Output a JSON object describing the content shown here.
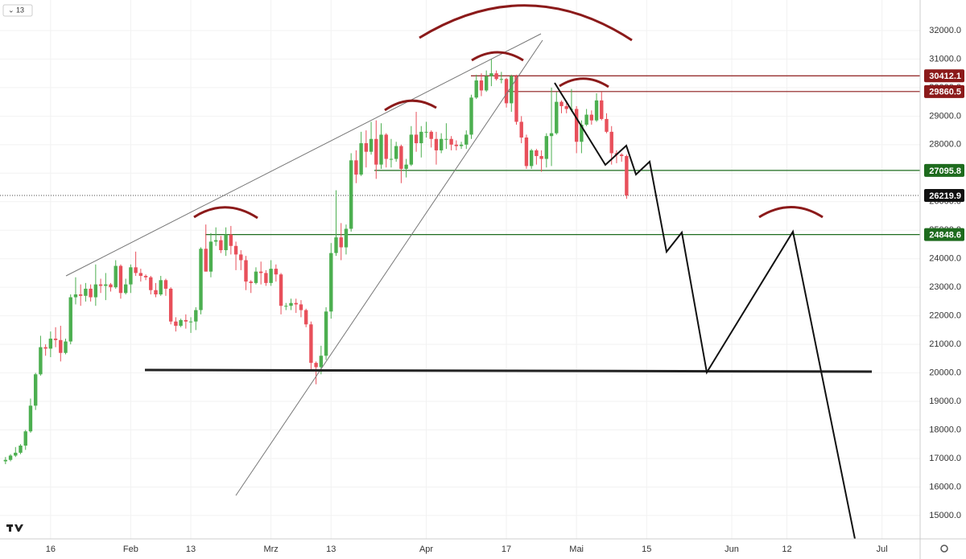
{
  "toolbar_label": "13",
  "chart_data": {
    "type": "candlestick",
    "up_color": "#4caf50",
    "down_color": "#e8505b",
    "xlim": [
      5.9,
      189.6
    ],
    "xticks": [
      {
        "value": 16,
        "label": "16"
      },
      {
        "value": 32,
        "label": "Feb"
      },
      {
        "value": 44,
        "label": "13"
      },
      {
        "value": 60,
        "label": "Mrz"
      },
      {
        "value": 72,
        "label": "13"
      },
      {
        "value": 91,
        "label": "Apr"
      },
      {
        "value": 107,
        "label": "17"
      },
      {
        "value": 121,
        "label": "Mai"
      },
      {
        "value": 135,
        "label": "15"
      },
      {
        "value": 152,
        "label": "Jun"
      },
      {
        "value": 163,
        "label": "12"
      },
      {
        "value": 182,
        "label": "Jul"
      }
    ],
    "ylim": [
      14180,
      33070
    ],
    "yticks": [
      {
        "value": 15000,
        "label": "15000.0"
      },
      {
        "value": 16000,
        "label": "16000.0"
      },
      {
        "value": 17000,
        "label": "17000.0"
      },
      {
        "value": 18000,
        "label": "18000.0"
      },
      {
        "value": 19000,
        "label": "19000.0"
      },
      {
        "value": 20000,
        "label": "20000.0"
      },
      {
        "value": 21000,
        "label": "21000.0"
      },
      {
        "value": 22000,
        "label": "22000.0"
      },
      {
        "value": 23000,
        "label": "23000.0"
      },
      {
        "value": 24000,
        "label": "24000.0"
      },
      {
        "value": 25000,
        "label": "25000.0"
      },
      {
        "value": 26000,
        "label": "26000.0"
      },
      {
        "value": 27000,
        "label": "27000.0"
      },
      {
        "value": 28000,
        "label": "28000.0"
      },
      {
        "value": 29000,
        "label": "29000.0"
      },
      {
        "value": 30000,
        "label": "30000.0"
      },
      {
        "value": 31000,
        "label": "31000.0"
      },
      {
        "value": 32000,
        "label": "32000.0"
      }
    ],
    "price_lines": [
      {
        "value": 30412.1,
        "color": "#8b1a1a"
      },
      {
        "value": 29860.5,
        "color": "#8b1a1a"
      },
      {
        "value": 27095.8,
        "color": "#1e6b1e"
      },
      {
        "value": 24848.6,
        "color": "#1e6b1e"
      },
      {
        "value": 26219.9,
        "color": "#111111"
      }
    ],
    "x": [
      7,
      8,
      9,
      10,
      11,
      12,
      13,
      14,
      15,
      16,
      17,
      18,
      19,
      20,
      21,
      22,
      23,
      24,
      25,
      26,
      27,
      28,
      29,
      30,
      31,
      32,
      33,
      34,
      35,
      36,
      37,
      38,
      39,
      40,
      41,
      42,
      43,
      44,
      45,
      46,
      47,
      48,
      49,
      50,
      51,
      52,
      53,
      54,
      55,
      56,
      57,
      58,
      59,
      60,
      61,
      62,
      63,
      64,
      65,
      66,
      67,
      68,
      69,
      70,
      71,
      72,
      73,
      74,
      75,
      76,
      77,
      78,
      79,
      80,
      81,
      82,
      83,
      84,
      85,
      86,
      87,
      88,
      89,
      90,
      91,
      92,
      93,
      94,
      95,
      96,
      97,
      98,
      99,
      100,
      101,
      102,
      103,
      104,
      105,
      106,
      107,
      108,
      109,
      110,
      111,
      112,
      113,
      114,
      115,
      116,
      117,
      118,
      119,
      120,
      121,
      122,
      123,
      124,
      125,
      126,
      127,
      128,
      129,
      130,
      131
    ],
    "ohlc": [
      [
        16900,
        17050,
        16800,
        16950
      ],
      [
        16950,
        17150,
        16900,
        17100
      ],
      [
        17100,
        17400,
        17050,
        17200
      ],
      [
        17200,
        17500,
        17150,
        17450
      ],
      [
        17450,
        18000,
        17300,
        17950
      ],
      [
        17950,
        19100,
        17900,
        18850
      ],
      [
        18850,
        20000,
        18700,
        19950
      ],
      [
        19950,
        21300,
        19900,
        20900
      ],
      [
        20900,
        21000,
        20600,
        20850
      ],
      [
        20850,
        21450,
        20550,
        21200
      ],
      [
        21200,
        21600,
        20900,
        21150
      ],
      [
        21150,
        21650,
        20400,
        20700
      ],
      [
        20700,
        21200,
        20650,
        21100
      ],
      [
        21100,
        22750,
        21000,
        22650
      ],
      [
        22650,
        23350,
        22400,
        22750
      ],
      [
        22750,
        23100,
        22350,
        22700
      ],
      [
        22700,
        23150,
        22500,
        22950
      ],
      [
        22950,
        23100,
        22500,
        22650
      ],
      [
        22650,
        23800,
        22350,
        23100
      ],
      [
        23100,
        23300,
        22800,
        23050
      ],
      [
        23050,
        23500,
        22550,
        23100
      ],
      [
        23100,
        23150,
        22850,
        23000
      ],
      [
        23000,
        23950,
        22950,
        23750
      ],
      [
        23750,
        23800,
        22600,
        22800
      ],
      [
        22800,
        23300,
        22750,
        23100
      ],
      [
        23100,
        23800,
        22800,
        23700
      ],
      [
        23700,
        24250,
        23400,
        23500
      ],
      [
        23500,
        23650,
        23200,
        23400
      ],
      [
        23400,
        23450,
        23250,
        23350
      ],
      [
        23350,
        23400,
        22750,
        22900
      ],
      [
        22900,
        23150,
        22650,
        22750
      ],
      [
        22750,
        23400,
        22700,
        23250
      ],
      [
        23250,
        23300,
        22700,
        22950
      ],
      [
        22950,
        23000,
        21700,
        21800
      ],
      [
        21800,
        21950,
        21450,
        21650
      ],
      [
        21650,
        21900,
        21600,
        21850
      ],
      [
        21850,
        22050,
        21550,
        21800
      ],
      [
        21800,
        21950,
        21400,
        21800
      ],
      [
        21800,
        22300,
        21500,
        22200
      ],
      [
        22200,
        24400,
        22050,
        24350
      ],
      [
        24350,
        25200,
        23550,
        23550
      ],
      [
        23550,
        24900,
        23350,
        24600
      ],
      [
        24600,
        25100,
        24450,
        24650
      ],
      [
        24650,
        24800,
        24200,
        24300
      ],
      [
        24300,
        25100,
        24100,
        24850
      ],
      [
        24850,
        25150,
        24150,
        24450
      ],
      [
        24450,
        24600,
        23600,
        24150
      ],
      [
        24150,
        24300,
        23600,
        23950
      ],
      [
        23950,
        24100,
        22900,
        23200
      ],
      [
        23200,
        23250,
        22800,
        23150
      ],
      [
        23150,
        23700,
        23100,
        23550
      ],
      [
        23550,
        23900,
        23100,
        23500
      ],
      [
        23500,
        23600,
        23050,
        23150
      ],
      [
        23150,
        23950,
        23050,
        23650
      ],
      [
        23650,
        23800,
        23200,
        23450
      ],
      [
        23450,
        23500,
        22050,
        22350
      ],
      [
        22350,
        22450,
        22200,
        22350
      ],
      [
        22350,
        22600,
        22200,
        22450
      ],
      [
        22450,
        22600,
        22100,
        22400
      ],
      [
        22400,
        22550,
        21950,
        22200
      ],
      [
        22200,
        22250,
        21600,
        21700
      ],
      [
        21700,
        21800,
        20050,
        20350
      ],
      [
        20350,
        20400,
        19600,
        20200
      ],
      [
        20200,
        20950,
        19950,
        20600
      ],
      [
        20600,
        22300,
        20450,
        22150
      ],
      [
        22150,
        24550,
        21900,
        24200
      ],
      [
        24200,
        26400,
        24100,
        24750
      ],
      [
        24750,
        25250,
        23950,
        24400
      ],
      [
        24400,
        25200,
        24150,
        25050
      ],
      [
        25050,
        27700,
        24950,
        27450
      ],
      [
        27450,
        27800,
        26650,
        26950
      ],
      [
        26950,
        28450,
        26900,
        28050
      ],
      [
        28050,
        28500,
        27200,
        27750
      ],
      [
        27750,
        28800,
        27650,
        28200
      ],
      [
        28200,
        28850,
        26800,
        27300
      ],
      [
        27300,
        28750,
        27150,
        28350
      ],
      [
        28350,
        28400,
        27200,
        27500
      ],
      [
        27500,
        28200,
        27200,
        27500
      ],
      [
        27500,
        28100,
        27400,
        27950
      ],
      [
        27950,
        28000,
        26650,
        27150
      ],
      [
        27150,
        27500,
        26850,
        27300
      ],
      [
        27300,
        28650,
        27250,
        28350
      ],
      [
        28350,
        29150,
        27750,
        28050
      ],
      [
        28050,
        28650,
        27550,
        28450
      ],
      [
        28450,
        28800,
        28250,
        28450
      ],
      [
        28450,
        28500,
        27900,
        28200
      ],
      [
        28200,
        28450,
        27300,
        27800
      ],
      [
        27800,
        28400,
        27700,
        28200
      ],
      [
        28200,
        28750,
        27850,
        28200
      ],
      [
        28200,
        28300,
        27800,
        28000
      ],
      [
        28000,
        28150,
        27800,
        27950
      ],
      [
        27950,
        28100,
        27850,
        28000
      ],
      [
        28000,
        28500,
        27850,
        28350
      ],
      [
        28350,
        29750,
        28200,
        29650
      ],
      [
        29650,
        30450,
        29600,
        30250
      ],
      [
        30250,
        30500,
        29700,
        29900
      ],
      [
        29900,
        30600,
        29850,
        30400
      ],
      [
        30400,
        31000,
        30050,
        30500
      ],
      [
        30500,
        30600,
        30250,
        30300
      ],
      [
        30300,
        30550,
        30150,
        30300
      ],
      [
        30300,
        30350,
        29300,
        29450
      ],
      [
        29450,
        30450,
        29150,
        30400
      ],
      [
        30400,
        30450,
        28700,
        28800
      ],
      [
        28800,
        29000,
        28050,
        28250
      ],
      [
        28250,
        28350,
        27150,
        27250
      ],
      [
        27250,
        27850,
        27150,
        27800
      ],
      [
        27800,
        27850,
        27300,
        27600
      ],
      [
        27600,
        27800,
        27050,
        27500
      ],
      [
        27500,
        28400,
        27200,
        28300
      ],
      [
        28300,
        30000,
        27250,
        28400
      ],
      [
        28400,
        29850,
        28350,
        29500
      ],
      [
        29500,
        29550,
        29100,
        29350
      ],
      [
        29350,
        29450,
        29100,
        29250
      ],
      [
        29250,
        29950,
        29150,
        29250
      ],
      [
        29250,
        29350,
        27700,
        28100
      ],
      [
        28100,
        28850,
        27700,
        28700
      ],
      [
        28700,
        29250,
        28650,
        29050
      ],
      [
        29050,
        29200,
        28700,
        28850
      ],
      [
        28850,
        29800,
        28800,
        29550
      ],
      [
        29550,
        29850,
        28850,
        28900
      ],
      [
        28900,
        29100,
        28400,
        28450
      ],
      [
        28450,
        28650,
        27300,
        27700
      ],
      [
        27700,
        27800,
        27350,
        27650
      ],
      [
        27650,
        27700,
        27400,
        27600
      ],
      [
        27600,
        27650,
        26100,
        26220
      ]
    ]
  }
}
